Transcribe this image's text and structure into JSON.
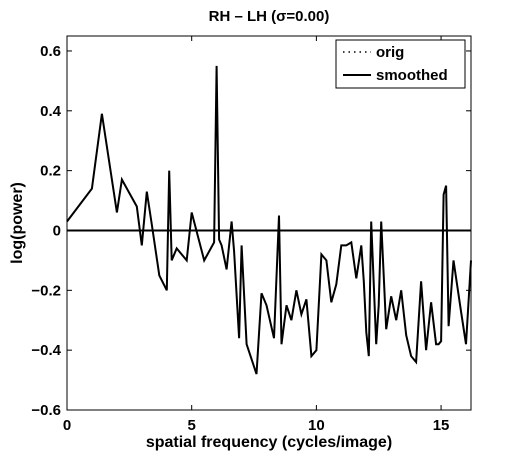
{
  "chart_data": {
    "type": "line",
    "title": "RH – LH (σ=0.00)",
    "xlabel": "spatial frequency (cycles/image)",
    "ylabel": "log(power)",
    "xlim": [
      0,
      16.2
    ],
    "ylim": [
      -0.6,
      0.65
    ],
    "xticks": [
      0,
      5,
      10,
      15
    ],
    "xtick_labels": [
      "0",
      "5",
      "10",
      "15"
    ],
    "yticks": [
      -0.6,
      -0.4,
      -0.2,
      0,
      0.2,
      0.4,
      0.6
    ],
    "ytick_labels": [
      "−0.6",
      "−0.4",
      "−0.2",
      "0",
      "0.2",
      "0.4",
      "0.6"
    ],
    "grid": false,
    "legend_position": "top-right",
    "reference_line": {
      "y": 0
    },
    "series": [
      {
        "name": "orig",
        "style": "dotted",
        "color": "#000000",
        "x": [],
        "y": []
      },
      {
        "name": "smoothed",
        "style": "solid",
        "color": "#000000",
        "x": [
          0.0,
          1.0,
          1.4,
          2.0,
          2.2,
          2.8,
          3.0,
          3.2,
          3.4,
          3.7,
          4.0,
          4.1,
          4.2,
          4.4,
          4.8,
          5.0,
          5.5,
          5.9,
          6.0,
          6.1,
          6.2,
          6.4,
          6.6,
          6.7,
          6.9,
          7.0,
          7.2,
          7.6,
          7.8,
          8.0,
          8.3,
          8.5,
          8.6,
          8.8,
          9.0,
          9.2,
          9.4,
          9.6,
          9.8,
          10.0,
          10.2,
          10.4,
          10.6,
          10.8,
          11.0,
          11.2,
          11.4,
          11.6,
          11.8,
          11.9,
          12.0,
          12.1,
          12.2,
          12.4,
          12.5,
          12.6,
          12.8,
          13.0,
          13.2,
          13.4,
          13.6,
          13.8,
          14.0,
          14.2,
          14.4,
          14.6,
          14.8,
          14.9,
          15.0,
          15.1,
          15.2,
          15.3,
          15.5,
          15.8,
          16.0,
          16.2
        ],
        "y": [
          0.03,
          0.14,
          0.39,
          0.06,
          0.17,
          0.08,
          -0.05,
          0.13,
          0.02,
          -0.15,
          -0.2,
          0.2,
          -0.1,
          -0.06,
          -0.1,
          0.06,
          -0.1,
          -0.04,
          0.55,
          -0.03,
          -0.05,
          -0.13,
          0.03,
          -0.07,
          -0.36,
          -0.05,
          -0.38,
          -0.48,
          -0.21,
          -0.25,
          -0.36,
          0.05,
          -0.38,
          -0.25,
          -0.3,
          -0.2,
          -0.28,
          -0.23,
          -0.42,
          -0.4,
          -0.08,
          -0.1,
          -0.24,
          -0.18,
          -0.05,
          -0.05,
          -0.04,
          -0.16,
          -0.05,
          -0.17,
          -0.34,
          -0.42,
          0.03,
          -0.38,
          -0.25,
          0.03,
          -0.33,
          -0.22,
          -0.3,
          -0.2,
          -0.35,
          -0.42,
          -0.44,
          -0.17,
          -0.4,
          -0.24,
          -0.38,
          -0.38,
          -0.37,
          0.12,
          0.15,
          -0.32,
          -0.1,
          -0.27,
          -0.38,
          -0.1
        ]
      }
    ]
  }
}
